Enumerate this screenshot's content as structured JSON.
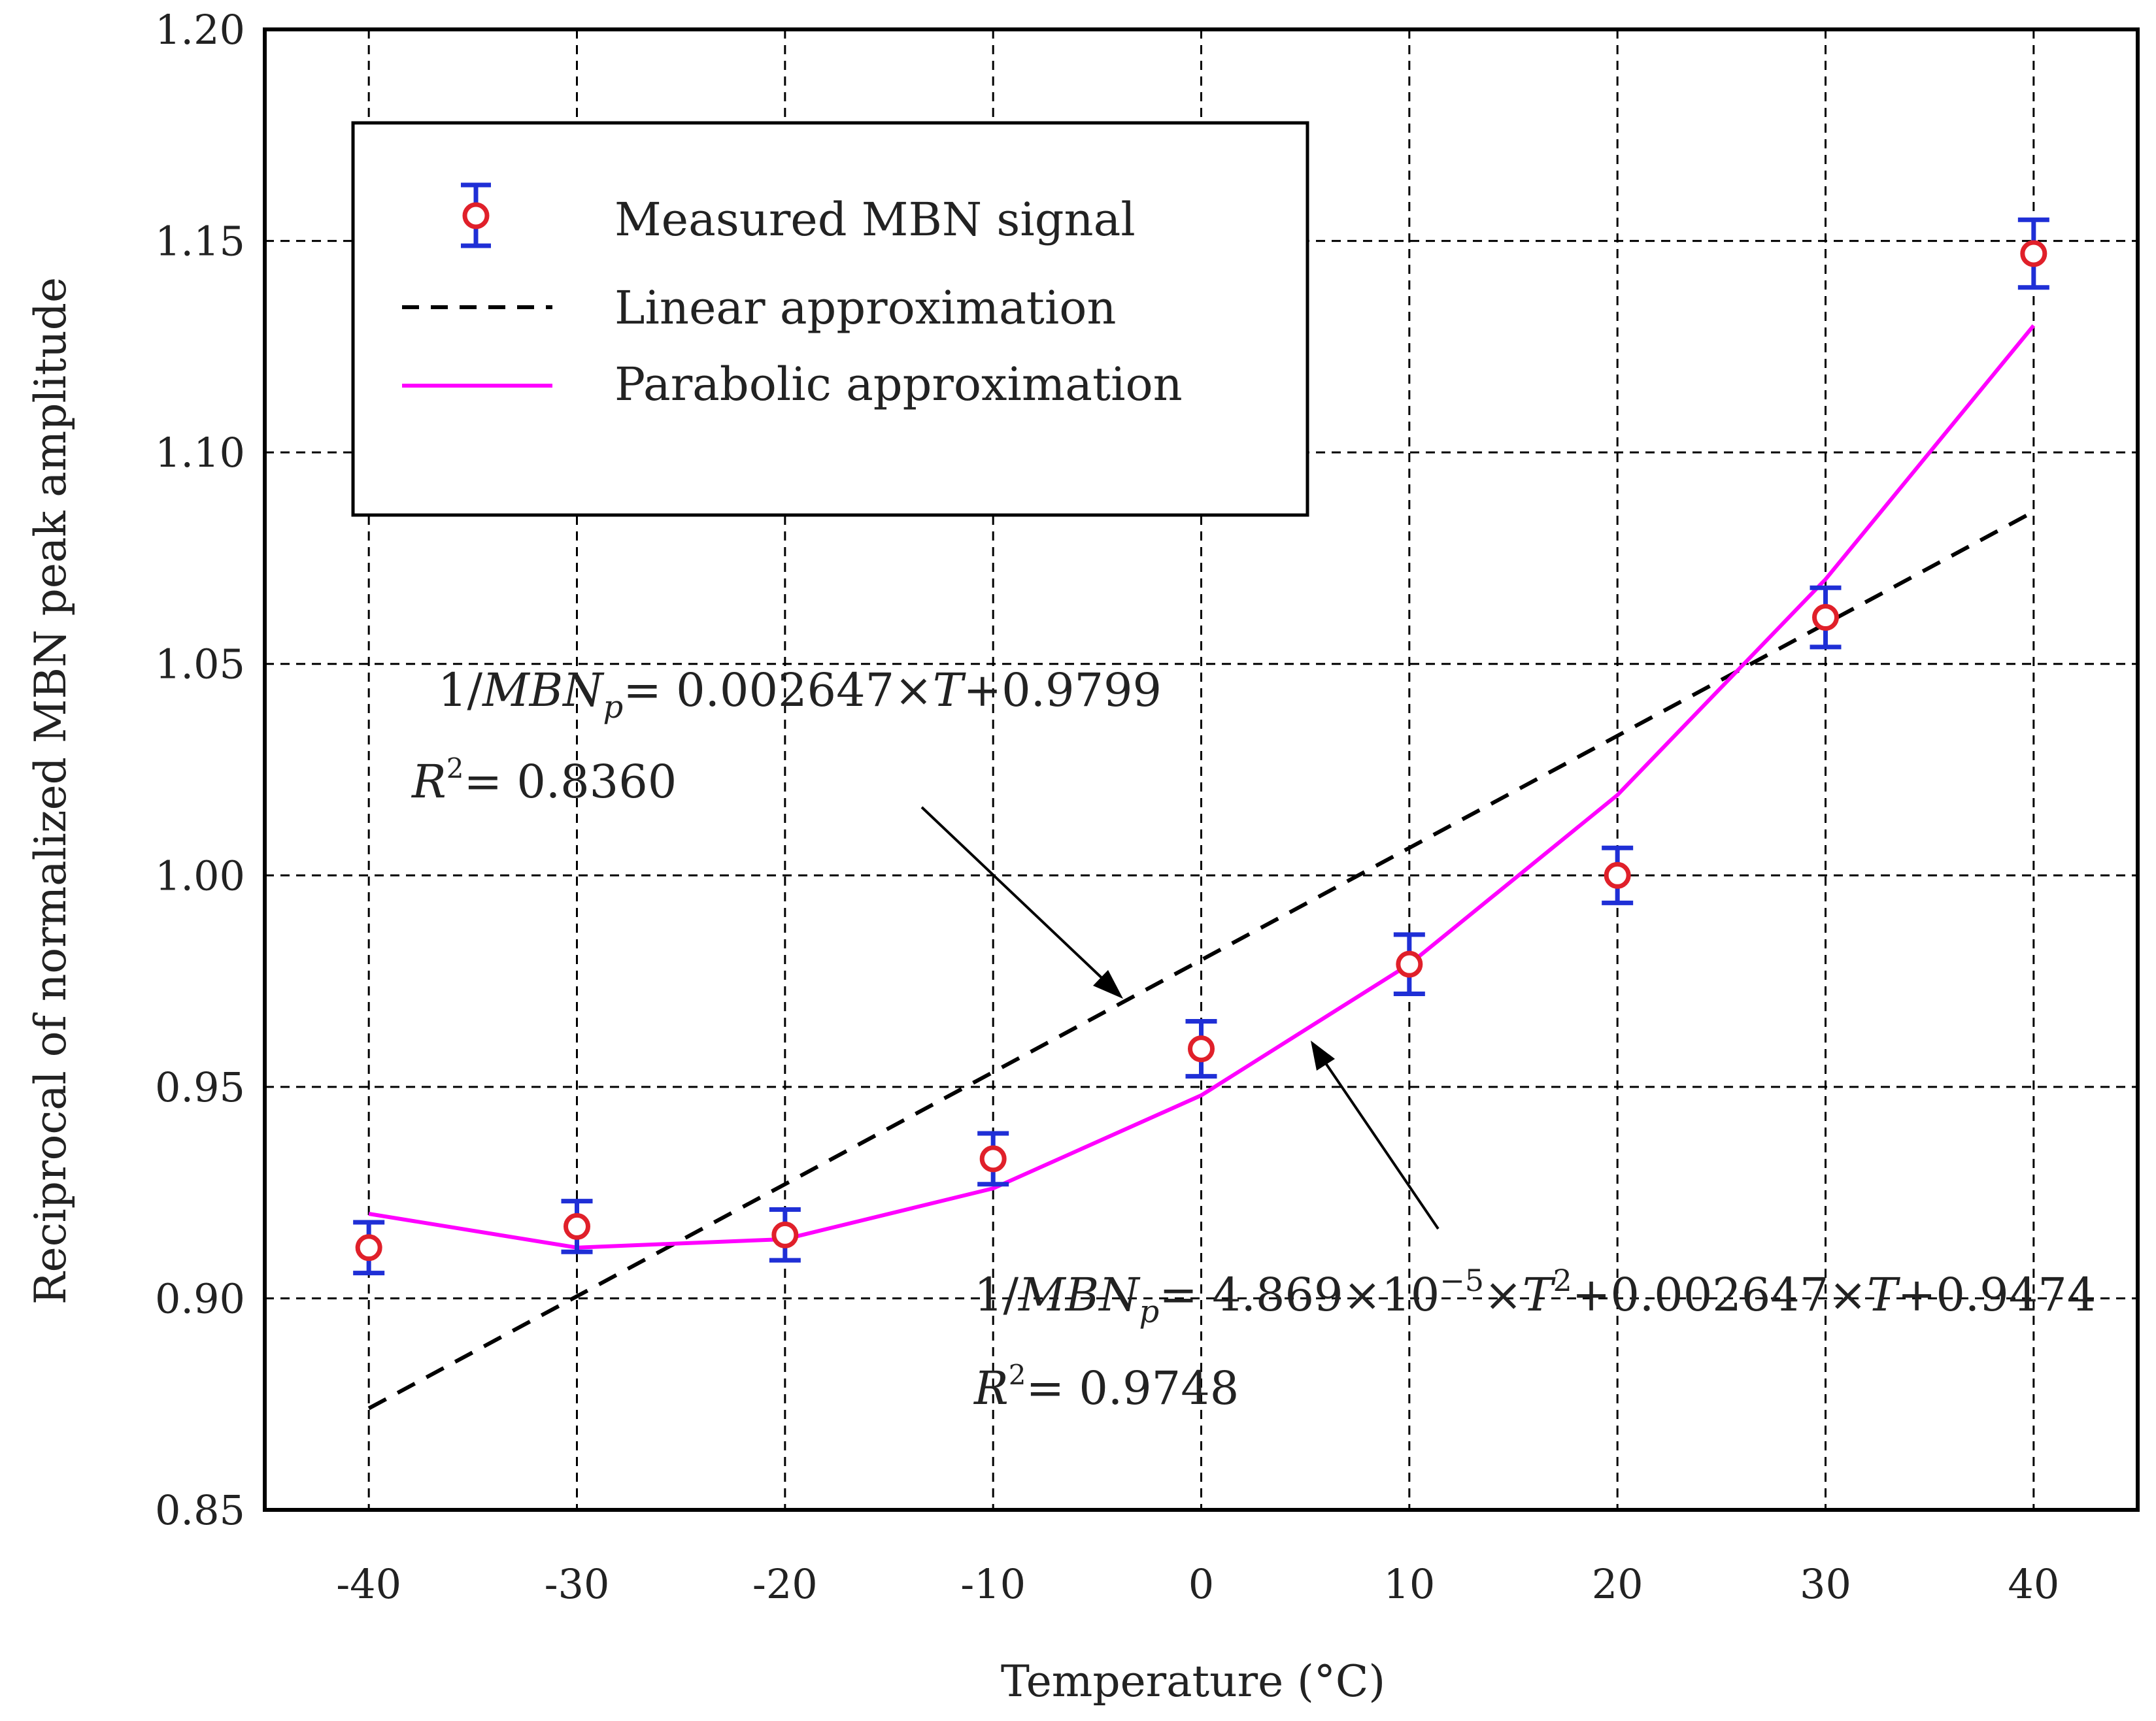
{
  "chart_data": {
    "type": "scatter",
    "title": "",
    "xlabel": "Temperature (°C)",
    "ylabel": "Reciprocal of normalized MBN peak amplitude",
    "xlim": [
      -45,
      45
    ],
    "ylim": [
      0.85,
      1.2
    ],
    "grid": true,
    "legend_position": "top-left",
    "x_ticks": [
      -40,
      -30,
      -20,
      -10,
      0,
      10,
      20,
      30,
      40
    ],
    "x_tick_labels": [
      "-40",
      "-30",
      "-20",
      "-10",
      "0",
      "10",
      "20",
      "30",
      "40"
    ],
    "y_ticks": [
      0.85,
      0.9,
      0.95,
      1.0,
      1.05,
      1.1,
      1.15,
      1.2
    ],
    "y_tick_labels": [
      "0.85",
      "0.90",
      "0.95",
      "1.00",
      "1.05",
      "1.10",
      "1.15",
      "1.20"
    ],
    "series": [
      {
        "name": "Measured MBN signal",
        "kind": "points-with-errorbars",
        "x": [
          -40,
          -30,
          -20,
          -10,
          0,
          10,
          20,
          30,
          40
        ],
        "y": [
          0.912,
          0.917,
          0.915,
          0.933,
          0.959,
          0.979,
          1.0,
          1.061,
          1.147
        ],
        "err": [
          0.006,
          0.006,
          0.006,
          0.006,
          0.0065,
          0.007,
          0.0065,
          0.007,
          0.008
        ]
      },
      {
        "name": "Linear approximation",
        "kind": "line-dashed",
        "x": [
          -40,
          40
        ],
        "y": [
          0.874,
          1.086
        ]
      },
      {
        "name": "Parabolic approximation",
        "kind": "line",
        "x": [
          -40,
          -30,
          -20,
          -10,
          0,
          10,
          20,
          30,
          40
        ],
        "y": [
          0.92,
          0.912,
          0.914,
          0.926,
          0.948,
          0.979,
          1.019,
          1.07,
          1.13
        ]
      }
    ],
    "annotations": [
      {
        "text_lhs": "1/",
        "text_var": "MBN",
        "text_sub": "p",
        "text_rhs": "= 0.002647×",
        "text_T": "T",
        "text_end": "+0.9799",
        "r2_label": "R",
        "r2_sup": "2",
        "r2_value": "= 0.8360",
        "points_to": "Linear approximation"
      },
      {
        "text_lhs": "1/",
        "text_var": "MBN",
        "text_sub": "p",
        "text_rhs": "= 4.869×10",
        "text_exp": "−5",
        "text_mid": "×",
        "text_T2": "T",
        "text_sup": "2",
        "text_rest": "+0.002647×",
        "text_T": "T",
        "text_end": "+0.9474",
        "r2_label": "R",
        "r2_sup": "2",
        "r2_value": "= 0.9748",
        "points_to": "Parabolic approximation"
      }
    ],
    "colors": {
      "marker_edge": "#e0202a",
      "errorbar": "#1f2fd6",
      "linear": "#000000",
      "parabolic": "#ff00ff",
      "grid": "#000000"
    }
  }
}
